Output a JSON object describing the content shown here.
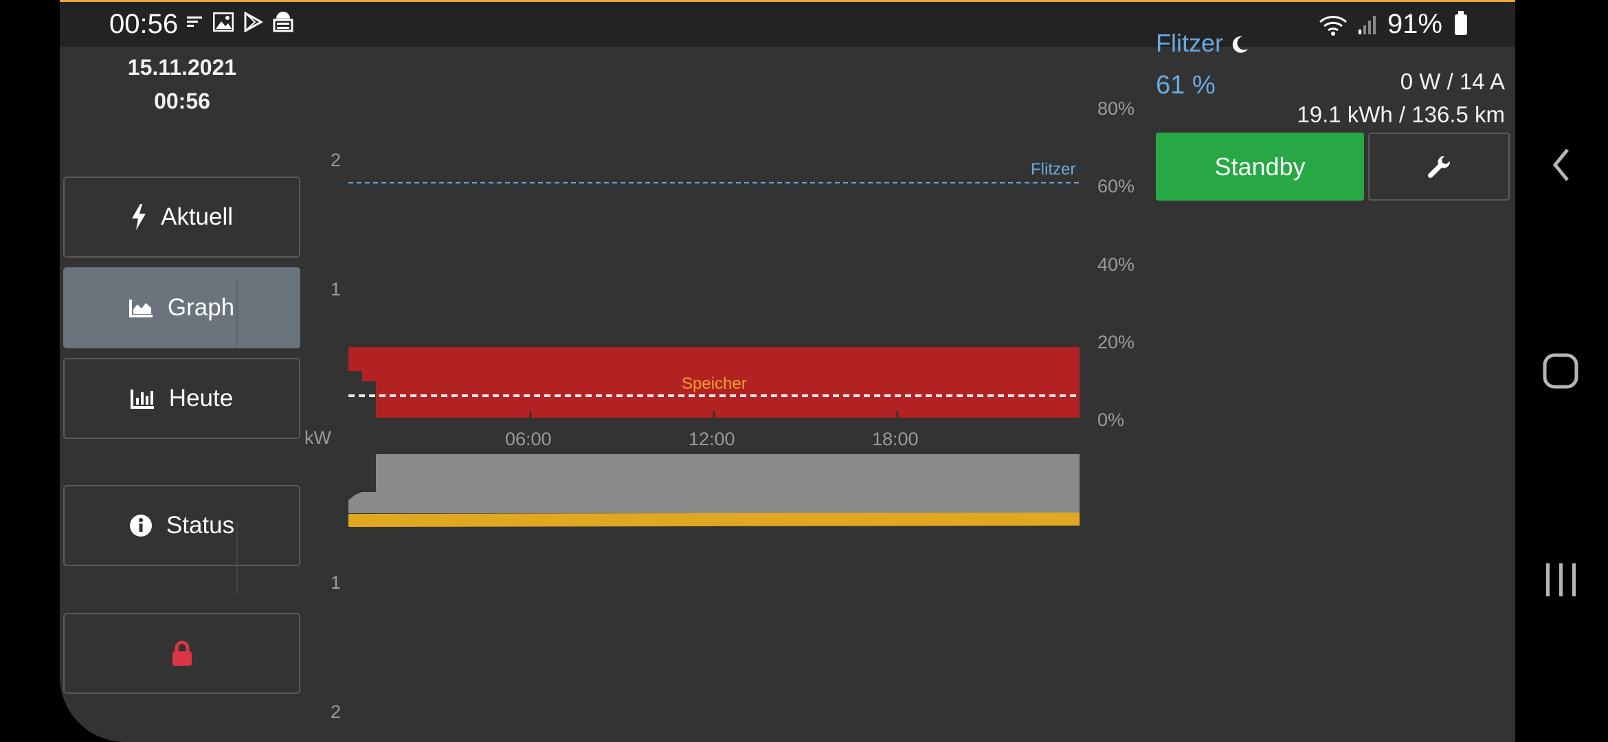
{
  "status_bar": {
    "time": "00:56",
    "battery": "91%"
  },
  "sidebar": {
    "date": "15.11.2021",
    "time": "00:56",
    "buttons": [
      {
        "label": "Aktuell",
        "icon": "bolt-icon",
        "active": false
      },
      {
        "label": "Graph",
        "icon": "area-chart-icon",
        "active": true
      },
      {
        "label": "Heute",
        "icon": "bar-chart-icon",
        "active": false
      },
      {
        "label": "Status",
        "icon": "info-circle-icon",
        "active": false
      },
      {
        "label": "",
        "icon": "lock-icon",
        "active": false
      }
    ]
  },
  "vehicle": {
    "name": "Flitzer",
    "soc": "61 %",
    "power": "0 W / 14 A",
    "energy": "19.1 kWh / 136.5 km",
    "mode_button": "Standby",
    "settings_icon": "wrench-icon"
  },
  "chart_data": {
    "type": "area",
    "xlabel": "",
    "ylabel": "kW",
    "x_ticks": [
      "06:00",
      "12:00",
      "18:00"
    ],
    "y_left_ticks_top": [
      "2",
      "1"
    ],
    "y_left_ticks_bottom": [
      "1",
      "2"
    ],
    "y_right_ticks": [
      "80%",
      "60%",
      "40%",
      "20%",
      "0%"
    ],
    "series": [
      {
        "name": "Flitzer",
        "kind": "soc-line",
        "value_percent": 61,
        "color": "#6aa9e0"
      },
      {
        "name": "Speicher",
        "kind": "soc-line",
        "value_percent": 5,
        "color": "#f0a030"
      },
      {
        "kind": "area",
        "direction": "up",
        "value_kw": 0.55,
        "color": "#b22222"
      },
      {
        "kind": "area",
        "direction": "down",
        "value_kw": 0.5,
        "color": "#8a8a8a"
      },
      {
        "kind": "area",
        "direction": "down",
        "value_kw": 0.1,
        "color": "#e0a820"
      }
    ],
    "colors": {
      "grid_red": "#b22222",
      "house_grey": "#8a8a8a",
      "pv_yellow": "#e0a820",
      "flitzer_blue": "#6aa9e0",
      "speicher_orange": "#f0a030"
    }
  },
  "system_nav": {
    "back": "back-icon",
    "home": "home-icon",
    "recents": "recents-icon"
  }
}
